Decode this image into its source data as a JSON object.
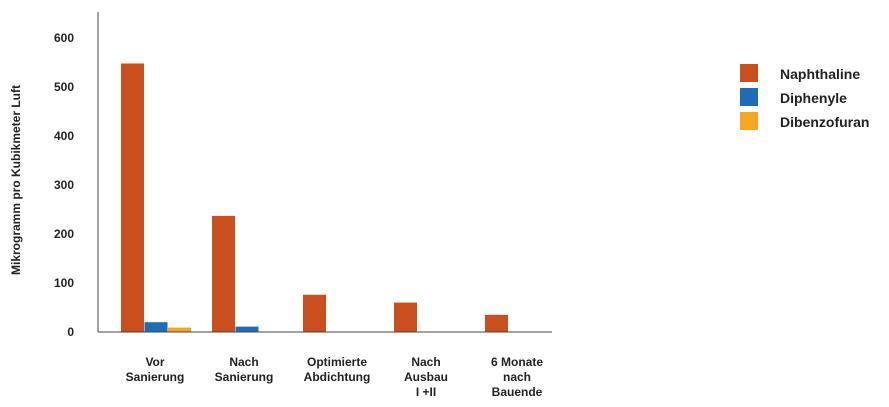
{
  "chart_data": {
    "type": "bar",
    "ylabel": "Mikrogramm pro Kubikmeter Luft",
    "xlabel": "",
    "title": "",
    "ylim": [
      0,
      600
    ],
    "yticks": [
      0,
      100,
      200,
      300,
      400,
      500,
      600
    ],
    "categories": [
      [
        "Vor",
        "Sanierung"
      ],
      [
        "Nach",
        "Sanierung"
      ],
      [
        "Optimierte",
        "Abdichtung"
      ],
      [
        "Nach",
        "Ausbau",
        "I +II"
      ],
      [
        "6 Monate",
        "nach",
        "Bauende"
      ]
    ],
    "series": [
      {
        "name": "Naphthaline",
        "color": "#C94F1E",
        "values": [
          548,
          237,
          76,
          60,
          35
        ]
      },
      {
        "name": "Diphenyle",
        "color": "#1F6BB5",
        "values": [
          20,
          11,
          0,
          0,
          0
        ]
      },
      {
        "name": "Dibenzofuran",
        "color": "#F5A623",
        "values": [
          9,
          0,
          0,
          0,
          0
        ]
      }
    ],
    "legend_position": "top-right",
    "grid": false
  }
}
